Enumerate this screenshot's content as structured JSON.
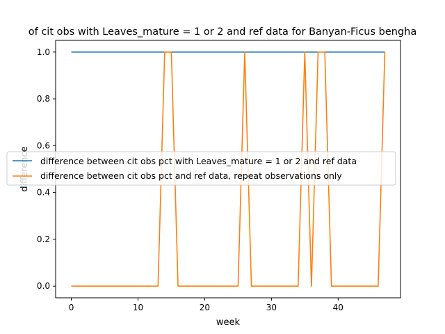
{
  "chart_data": {
    "type": "line",
    "title": "of cit obs with Leaves_mature = 1 or 2 and ref data for Banyan-Ficus bengha",
    "xlabel": "week",
    "ylabel": "difference",
    "xlim": [
      -2.35,
      49.35
    ],
    "ylim": [
      -0.05,
      1.05
    ],
    "xticks": [
      0,
      10,
      20,
      30,
      40
    ],
    "yticks": [
      0.0,
      0.2,
      0.4,
      0.6,
      0.8,
      1.0
    ],
    "xtick_labels": [
      "0",
      "10",
      "20",
      "30",
      "40"
    ],
    "ytick_labels": [
      "0.0",
      "0.2",
      "0.4",
      "0.6",
      "0.8",
      "1.0"
    ],
    "grid": false,
    "legend_position": "center-left",
    "series": [
      {
        "name": "difference between cit obs pct with Leaves_mature = 1 or 2 and ref data",
        "color": "#1f77b4",
        "x": [
          0,
          47
        ],
        "y": [
          1,
          1
        ]
      },
      {
        "name": "difference between cit obs pct and ref data, repeat observations only",
        "color": "#ff7f0e",
        "x": [
          0,
          13,
          14,
          15,
          16,
          25,
          26,
          27,
          34,
          35,
          36,
          37,
          38,
          39,
          46,
          47
        ],
        "y": [
          0,
          0,
          1,
          1,
          0,
          0,
          1,
          0,
          0,
          1,
          0,
          1,
          1,
          0,
          0,
          1
        ]
      }
    ]
  }
}
